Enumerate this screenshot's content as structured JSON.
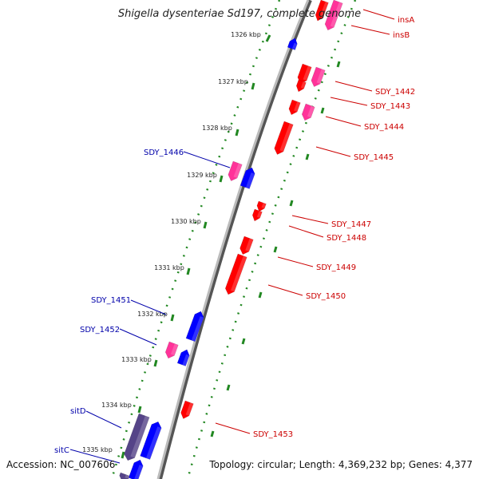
{
  "title": "Shigella dysenteriae Sd197, complete genome",
  "accession_text": "Accession: NC_007606",
  "topology_text": "Topology: circular; Length: 4,369,232 bp; Genes: 4,377",
  "colors": {
    "forward_gene": "#ff0000",
    "forward_gene_alt": "#ff3399",
    "reverse_gene": "#0000ff",
    "reverse_gene_dark": "#554488",
    "backbone": "#888888",
    "tick": "#228822",
    "forward_label": "#cc0000",
    "reverse_label": "#0000aa"
  },
  "kbp_ticks": [
    "1326 kbp",
    "1327 kbp",
    "1328 kbp",
    "1329 kbp",
    "1330 kbp",
    "1331 kbp",
    "1332 kbp",
    "1333 kbp",
    "1334 kbp",
    "1335 kbp"
  ],
  "forward_genes": [
    "insA",
    "insB",
    "SDY_1442",
    "SDY_1443",
    "SDY_1444",
    "SDY_1445",
    "SDY_1447",
    "SDY_1448",
    "SDY_1449",
    "SDY_1450",
    "SDY_1453"
  ],
  "reverse_genes": [
    "SDY_1446",
    "SDY_1451",
    "SDY_1452",
    "sitD",
    "sitC"
  ]
}
